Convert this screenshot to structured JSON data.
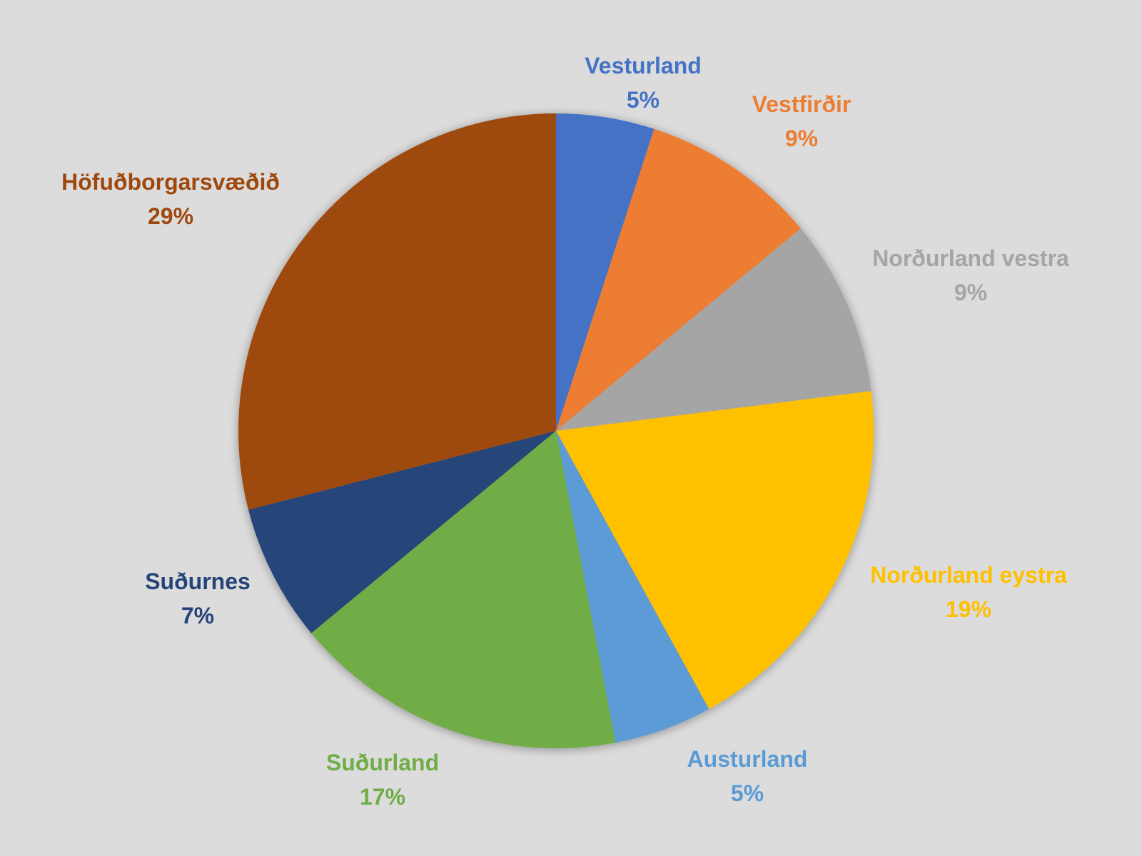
{
  "chart_data": {
    "type": "pie",
    "title": "",
    "start": "12 o'clock, clockwise",
    "slices": [
      {
        "name": "Vesturland",
        "value": 5,
        "label": "5%",
        "color": "#4472c4"
      },
      {
        "name": "Vestfirðir",
        "value": 9,
        "label": "9%",
        "color": "#ed7d31"
      },
      {
        "name": "Norðurland vestra",
        "value": 9,
        "label": "9%",
        "color": "#a5a5a5"
      },
      {
        "name": "Norðurland eystra",
        "value": 19,
        "label": "19%",
        "color": "#ffc000"
      },
      {
        "name": "Austurland",
        "value": 5,
        "label": "5%",
        "color": "#5b9bd5"
      },
      {
        "name": "Suðurland",
        "value": 17,
        "label": "17%",
        "color": "#70ad47"
      },
      {
        "name": "Suðurnes",
        "value": 7,
        "label": "7%",
        "color": "#264478"
      },
      {
        "name": "Höfuðborgarsvæðið",
        "value": 29,
        "label": "29%",
        "color": "#9e480e"
      }
    ]
  }
}
